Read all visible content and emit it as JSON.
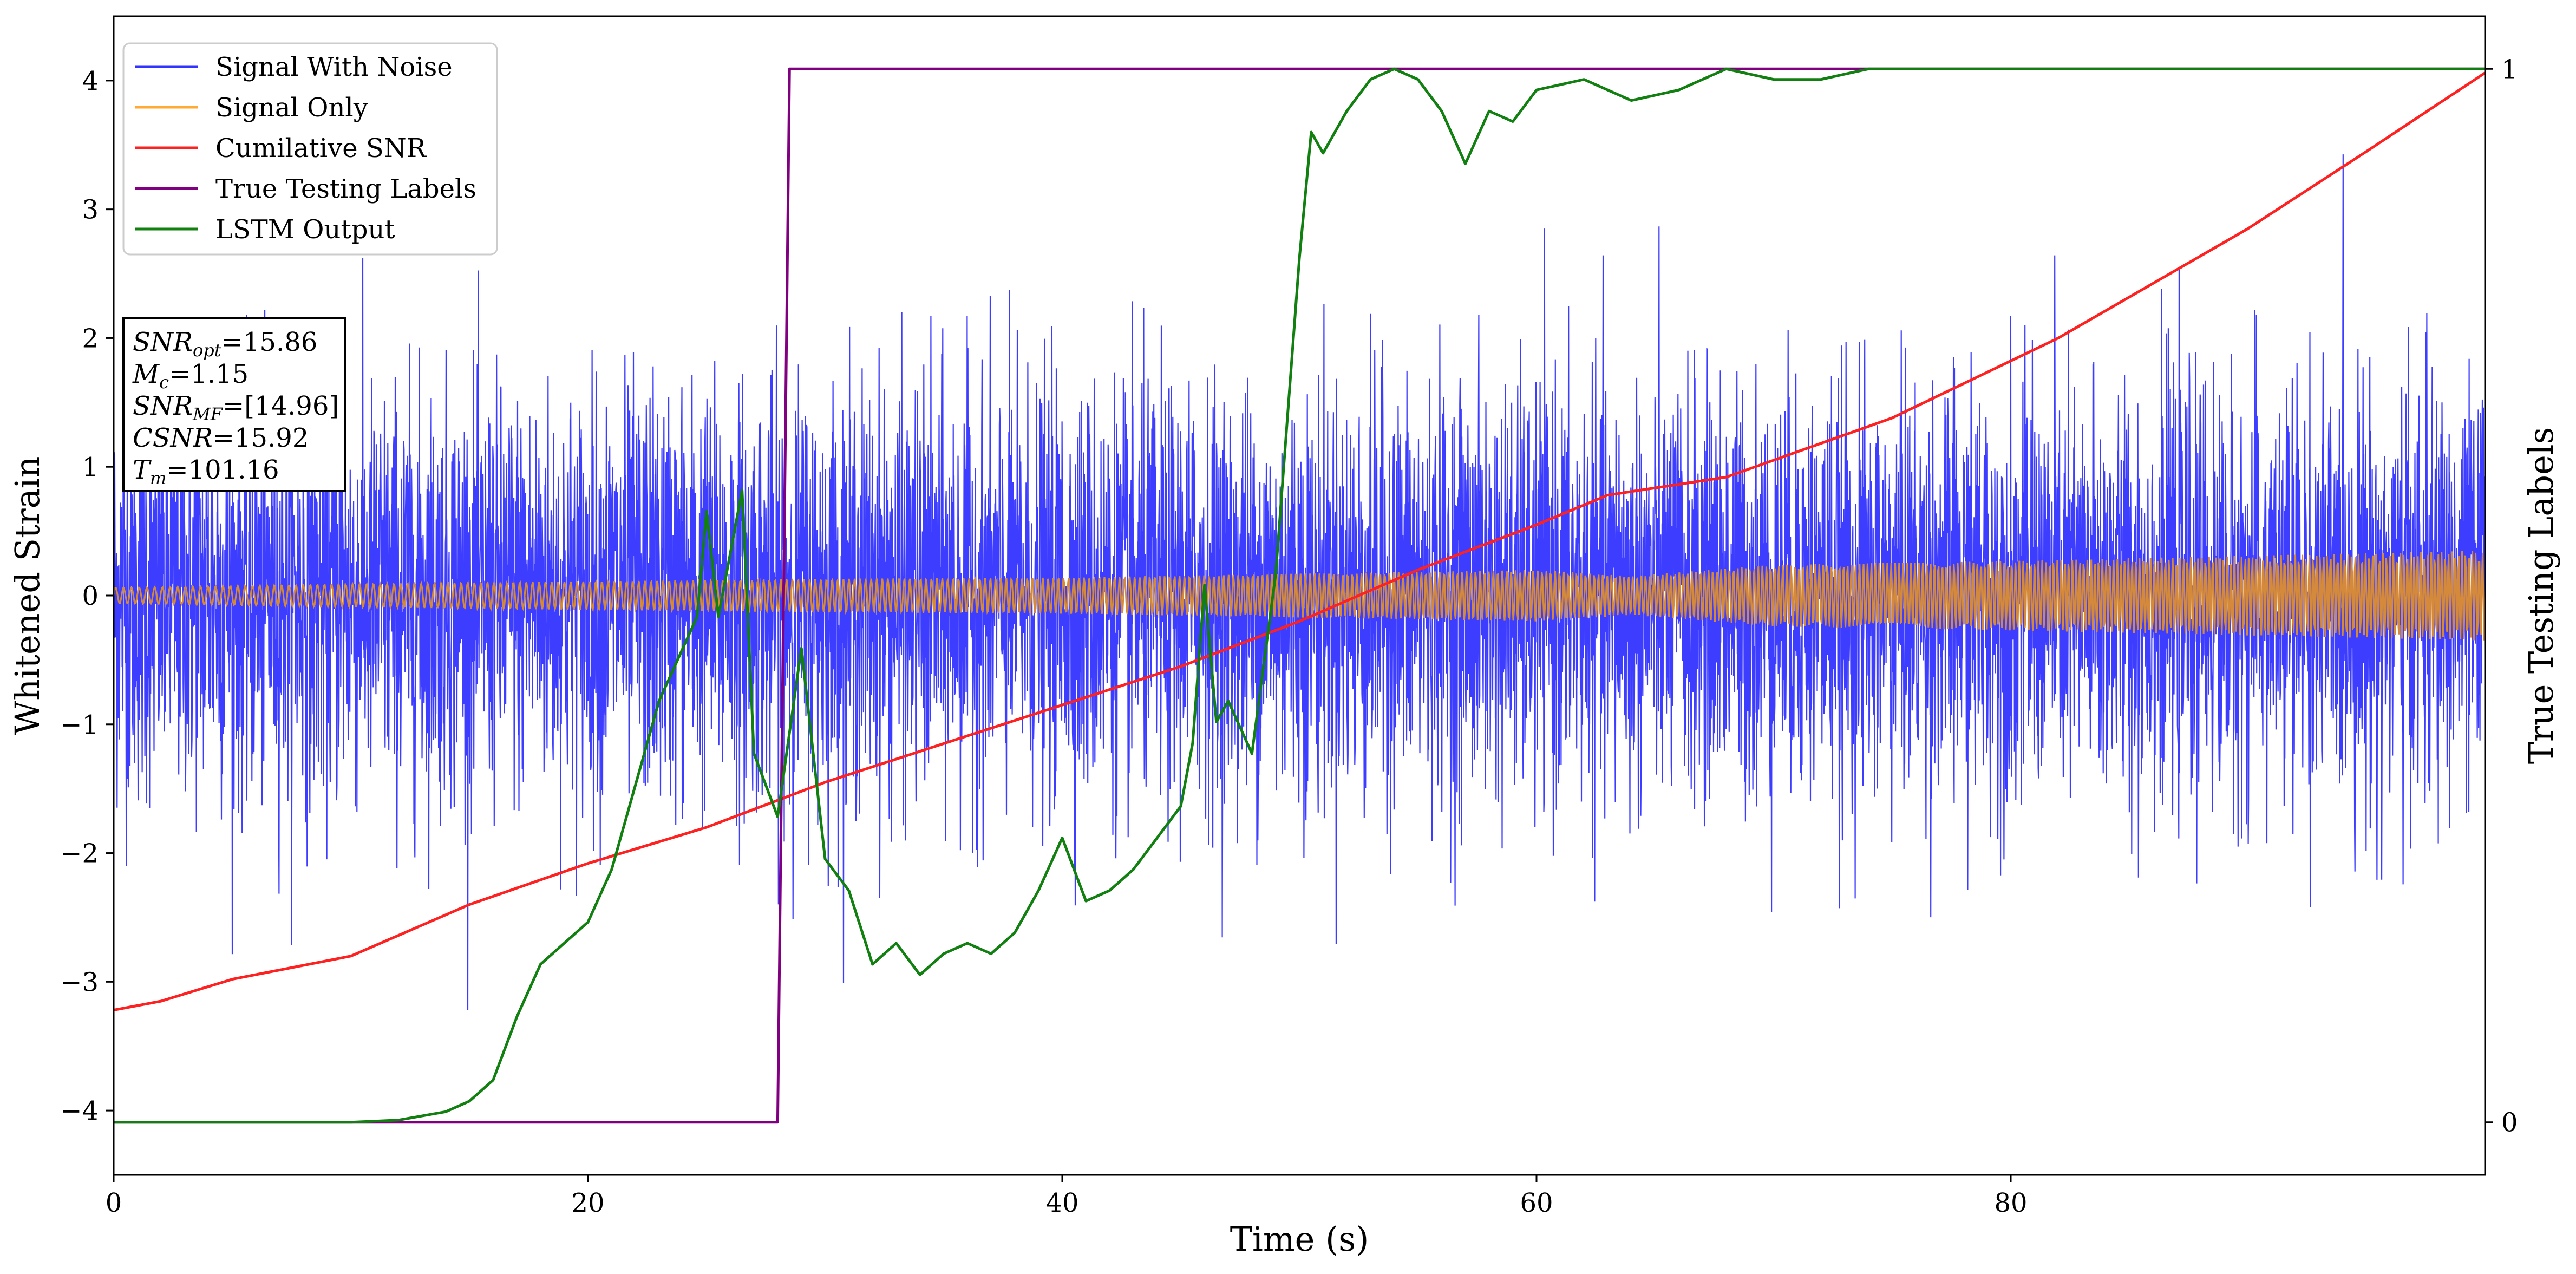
{
  "chart_data": {
    "type": "line",
    "xlabel": "Time (s)",
    "ylabel": "Whitened Strain",
    "ylabel_right": "True Testing Labels",
    "xlim": [
      0,
      100
    ],
    "ylim": [
      -4.5,
      4.5
    ],
    "ylim_right": [
      -0.05,
      1.05
    ],
    "x_ticks": [
      0,
      20,
      40,
      60,
      80
    ],
    "x_tick_labels": [
      "0",
      "20",
      "40",
      "60",
      "80"
    ],
    "y_ticks": [
      -4,
      -3,
      -2,
      -1,
      0,
      1,
      2,
      3,
      4
    ],
    "y_tick_labels": [
      "−4",
      "−3",
      "−2",
      "−1",
      "0",
      "1",
      "2",
      "3",
      "4"
    ],
    "y_right_ticks": [
      0,
      1
    ],
    "y_right_tick_labels": [
      "0",
      "1"
    ],
    "grid": false,
    "legend_position": "top-left",
    "colors": {
      "signal_with_noise": "#3333ff",
      "signal_only": "#ffaa33",
      "signal_band": "#d48a3a",
      "cumulative_snr": "#ff2020",
      "true_labels": "#800080",
      "lstm_output": "#118011"
    },
    "series": [
      {
        "name": "Signal With Noise",
        "axis": "left",
        "description_values": "whitened noisy strain, approx. gaussian noise with std ~0.8 and sparse spikes up to about ±3.5",
        "noise_std": 0.8
      },
      {
        "name": "Signal Only",
        "axis": "left",
        "envelope": {
          "x": [
            0,
            10,
            20,
            30,
            40,
            50,
            60,
            64,
            70,
            80,
            90,
            100
          ],
          "y": [
            0.06,
            0.09,
            0.11,
            0.13,
            0.14,
            0.17,
            0.2,
            0.15,
            0.24,
            0.27,
            0.31,
            0.35
          ]
        }
      },
      {
        "name": "Cumilative SNR",
        "axis": "left",
        "x": [
          0,
          2,
          5,
          10,
          15,
          20,
          25,
          30,
          35,
          40,
          45,
          50,
          55,
          60,
          63,
          68,
          75,
          82,
          90,
          95,
          100
        ],
        "y": [
          -3.22,
          -3.15,
          -2.98,
          -2.8,
          -2.4,
          -2.08,
          -1.8,
          -1.45,
          -1.15,
          -0.85,
          -0.55,
          -0.2,
          0.2,
          0.55,
          0.78,
          0.92,
          1.38,
          2.0,
          2.85,
          3.45,
          4.06
        ]
      },
      {
        "name": "True Testing Labels",
        "axis": "right",
        "x": [
          0,
          28,
          28.5,
          100
        ],
        "y": [
          0,
          0,
          1,
          1
        ]
      },
      {
        "name": "LSTM Output",
        "axis": "right",
        "x": [
          0,
          10,
          12,
          14,
          15,
          16,
          17,
          18,
          19,
          20,
          21,
          22,
          23,
          24,
          24.6,
          25,
          25.5,
          26,
          26.5,
          27,
          28,
          29,
          30,
          31,
          32,
          33,
          34,
          35,
          36,
          37,
          38,
          39,
          40,
          41,
          42,
          43,
          44,
          45,
          45.5,
          46,
          46.5,
          47,
          48,
          49,
          50,
          50.5,
          51,
          52,
          53,
          54,
          55,
          56,
          57,
          58,
          59,
          60,
          62,
          64,
          66,
          68,
          70,
          72,
          74,
          100
        ],
        "y": [
          0,
          0,
          0.002,
          0.01,
          0.02,
          0.04,
          0.1,
          0.15,
          0.17,
          0.19,
          0.24,
          0.32,
          0.4,
          0.45,
          0.48,
          0.58,
          0.48,
          0.54,
          0.6,
          0.35,
          0.29,
          0.45,
          0.25,
          0.22,
          0.15,
          0.17,
          0.14,
          0.16,
          0.17,
          0.16,
          0.18,
          0.22,
          0.27,
          0.21,
          0.22,
          0.24,
          0.27,
          0.3,
          0.36,
          0.51,
          0.38,
          0.4,
          0.35,
          0.52,
          0.82,
          0.94,
          0.92,
          0.96,
          0.99,
          1.0,
          0.99,
          0.96,
          0.91,
          0.96,
          0.95,
          0.98,
          0.99,
          0.97,
          0.98,
          1.0,
          0.99,
          0.99,
          1.0,
          1.0
        ]
      }
    ],
    "annotation_box": {
      "lines": [
        {
          "base": "SNR",
          "sub": "opt",
          "value": "=15.86"
        },
        {
          "base": "M",
          "sub": "c",
          "value": "=1.15"
        },
        {
          "base": "SNR",
          "sub": "MF",
          "value": "=[14.96]"
        },
        {
          "base": "CSNR",
          "sub": "",
          "value": "=15.92"
        },
        {
          "base": "T",
          "sub": "m",
          "value": "=101.16"
        }
      ]
    },
    "legend": [
      {
        "label": "Signal With Noise",
        "color": "#3333ff"
      },
      {
        "label": "Signal Only",
        "color": "#ffaa33"
      },
      {
        "label": "Cumilative SNR",
        "color": "#ff2020"
      },
      {
        "label": "True Testing Labels",
        "color": "#800080"
      },
      {
        "label": "LSTM Output",
        "color": "#118011"
      }
    ]
  }
}
